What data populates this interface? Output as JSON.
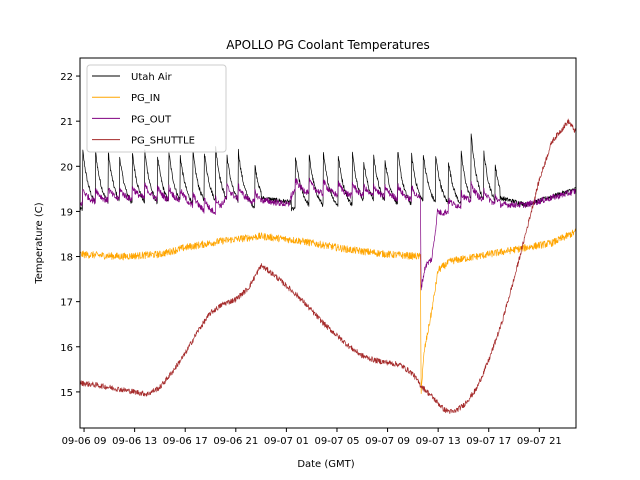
{
  "chart_data": {
    "type": "line",
    "title": "APOLLO PG Coolant Temperatures",
    "xlabel": "Date (GMT)",
    "ylabel": "Temperature (C)",
    "x_unit": "hours since 09-06 00:00",
    "xlim": [
      8.68,
      47.9
    ],
    "ylim": [
      14.2,
      22.4
    ],
    "grid": false,
    "legend_position": "top-left",
    "x_ticks": [
      {
        "value": 9,
        "label": "09-06 09"
      },
      {
        "value": 13,
        "label": "09-06 13"
      },
      {
        "value": 17,
        "label": "09-06 17"
      },
      {
        "value": 21,
        "label": "09-06 21"
      },
      {
        "value": 25,
        "label": "09-07 01"
      },
      {
        "value": 29,
        "label": "09-07 05"
      },
      {
        "value": 33,
        "label": "09-07 09"
      },
      {
        "value": 37,
        "label": "09-07 13"
      },
      {
        "value": 41,
        "label": "09-07 17"
      },
      {
        "value": 45,
        "label": "09-07 21"
      }
    ],
    "y_ticks": [
      {
        "value": 15,
        "label": "15"
      },
      {
        "value": 16,
        "label": "16"
      },
      {
        "value": 17,
        "label": "17"
      },
      {
        "value": 18,
        "label": "18"
      },
      {
        "value": 19,
        "label": "19"
      },
      {
        "value": 20,
        "label": "20"
      },
      {
        "value": 21,
        "label": "21"
      },
      {
        "value": 22,
        "label": "22"
      }
    ],
    "series": [
      {
        "name": "Utah Air",
        "color": "#000000",
        "noise": 0.05,
        "baseline": [
          [
            8.68,
            19.1
          ],
          [
            25,
            19.1
          ],
          [
            42,
            19.1
          ],
          [
            47.9,
            19.5
          ]
        ],
        "spike_times": [
          8.9,
          9.9,
          10.9,
          11.8,
          12.8,
          13.8,
          14.8,
          15.7,
          16.6,
          17.6,
          18.5,
          19.4,
          20.3,
          21.2,
          22.5,
          25.7,
          26.8,
          27.9,
          29.1,
          30.2,
          31.1,
          31.9,
          32.8,
          33.8,
          34.9,
          35.8,
          36.8,
          37.8,
          38.8,
          39.6,
          40.6,
          41.5
        ],
        "spike_peaks": [
          20.3,
          20.3,
          20.3,
          20.2,
          20.3,
          20.3,
          20.2,
          20.3,
          20.2,
          20.3,
          20.3,
          20.4,
          20.2,
          20.3,
          20.0,
          20.2,
          20.2,
          20.3,
          20.2,
          20.3,
          20.1,
          20.2,
          20.1,
          20.3,
          20.2,
          20.3,
          20.2,
          20.1,
          20.3,
          20.7,
          20.3,
          20.0
        ],
        "quiet": [
          [
            23.0,
            25.4
          ],
          [
            41.9,
            47.9
          ]
        ],
        "quiet_level": [
          [
            23.0,
            19.3
          ],
          [
            25.4,
            19.2
          ],
          [
            41.9,
            19.3
          ],
          [
            44,
            19.15
          ],
          [
            47.9,
            19.5
          ]
        ]
      },
      {
        "name": "PG_IN",
        "color": "#ffa500",
        "noise": 0.08,
        "points": [
          [
            8.68,
            18.05
          ],
          [
            12,
            18.0
          ],
          [
            15,
            18.05
          ],
          [
            17,
            18.2
          ],
          [
            20,
            18.35
          ],
          [
            23,
            18.45
          ],
          [
            26,
            18.35
          ],
          [
            30,
            18.15
          ],
          [
            33,
            18.05
          ],
          [
            35.6,
            18.0
          ],
          [
            35.65,
            15.0
          ],
          [
            35.9,
            15.9
          ],
          [
            36.5,
            16.8
          ],
          [
            37.0,
            17.7
          ],
          [
            38.0,
            17.9
          ],
          [
            41,
            18.05
          ],
          [
            44,
            18.2
          ],
          [
            46,
            18.3
          ],
          [
            47.9,
            18.55
          ]
        ]
      },
      {
        "name": "PG_OUT",
        "color": "#800080",
        "noise": 0.07,
        "points": [
          [
            8.68,
            19.25
          ],
          [
            12,
            19.3
          ],
          [
            14,
            19.35
          ],
          [
            17,
            19.25
          ],
          [
            18,
            19.1
          ],
          [
            19,
            19.0
          ],
          [
            19.8,
            19.05
          ],
          [
            20.3,
            19.35
          ],
          [
            23,
            19.25
          ],
          [
            25.2,
            19.15
          ],
          [
            25.5,
            19.5
          ],
          [
            30,
            19.4
          ],
          [
            33,
            19.35
          ],
          [
            35.6,
            19.3
          ],
          [
            35.65,
            17.3
          ],
          [
            36.0,
            17.8
          ],
          [
            36.5,
            17.95
          ],
          [
            36.9,
            18.85
          ],
          [
            38,
            19.1
          ],
          [
            40,
            19.3
          ],
          [
            42,
            19.15
          ],
          [
            44,
            19.15
          ],
          [
            47.9,
            19.45
          ]
        ],
        "follows_spikes": true
      },
      {
        "name": "PG_SHUTTLE",
        "color": "#a52a2a",
        "noise": 0.06,
        "points": [
          [
            8.68,
            15.2
          ],
          [
            10,
            15.15
          ],
          [
            12,
            15.05
          ],
          [
            14,
            14.95
          ],
          [
            15,
            15.1
          ],
          [
            16,
            15.45
          ],
          [
            17,
            15.85
          ],
          [
            18,
            16.35
          ],
          [
            19,
            16.75
          ],
          [
            20,
            16.95
          ],
          [
            21,
            17.05
          ],
          [
            22,
            17.3
          ],
          [
            23,
            17.8
          ],
          [
            24,
            17.6
          ],
          [
            25,
            17.35
          ],
          [
            26,
            17.1
          ],
          [
            27,
            16.8
          ],
          [
            28,
            16.5
          ],
          [
            29,
            16.25
          ],
          [
            30,
            16.0
          ],
          [
            31,
            15.8
          ],
          [
            32,
            15.7
          ],
          [
            33,
            15.65
          ],
          [
            34,
            15.6
          ],
          [
            35,
            15.4
          ],
          [
            35.6,
            15.15
          ],
          [
            36.5,
            14.9
          ],
          [
            37.5,
            14.6
          ],
          [
            38.2,
            14.55
          ],
          [
            39,
            14.7
          ],
          [
            40,
            15.05
          ],
          [
            41,
            15.7
          ],
          [
            42,
            16.5
          ],
          [
            43,
            17.5
          ],
          [
            44,
            18.6
          ],
          [
            45,
            19.7
          ],
          [
            46,
            20.55
          ],
          [
            47.3,
            21.0
          ],
          [
            47.9,
            20.75
          ]
        ]
      }
    ]
  }
}
